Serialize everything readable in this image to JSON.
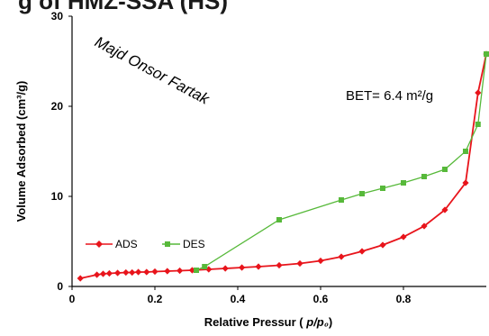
{
  "header_fragment": "g of HMZ-SSA (HS)",
  "chart_data": {
    "type": "line",
    "xlabel": "Relative Pressur (p/p₀)",
    "ylabel": "Volume Adsorbed (cm³/g)",
    "xlim": [
      0,
      1.0
    ],
    "ylim": [
      0,
      30
    ],
    "xticks": [
      "0",
      "0.2",
      "0.4",
      "0.6",
      "0.8"
    ],
    "xtick_values": [
      0,
      0.2,
      0.4,
      0.6,
      0.8
    ],
    "yticks": [
      "0",
      "10",
      "20",
      "30"
    ],
    "ytick_values": [
      0,
      10,
      20,
      30
    ],
    "grid": false,
    "legend": "bottom-left",
    "annotations": {
      "watermark": "Majd Onsor Fartak",
      "bet": "BET= 6.4 m²/g"
    },
    "series": [
      {
        "name": "ADS",
        "color": "#e8141b",
        "marker": "diamond",
        "x": [
          0.02,
          0.06,
          0.075,
          0.09,
          0.11,
          0.13,
          0.145,
          0.16,
          0.18,
          0.2,
          0.23,
          0.26,
          0.29,
          0.33,
          0.37,
          0.41,
          0.45,
          0.5,
          0.55,
          0.6,
          0.65,
          0.7,
          0.75,
          0.8,
          0.85,
          0.9,
          0.95,
          0.98,
          1.0
        ],
        "y": [
          0.9,
          1.3,
          1.4,
          1.45,
          1.5,
          1.55,
          1.55,
          1.6,
          1.6,
          1.65,
          1.7,
          1.75,
          1.8,
          1.9,
          2.0,
          2.1,
          2.2,
          2.35,
          2.55,
          2.85,
          3.3,
          3.9,
          4.6,
          5.5,
          6.7,
          8.5,
          11.5,
          21.5,
          25.8
        ]
      },
      {
        "name": "DES",
        "color": "#57b93a",
        "marker": "square",
        "x": [
          0.3,
          0.32,
          0.5,
          0.65,
          0.7,
          0.75,
          0.8,
          0.85,
          0.9,
          0.95,
          0.98,
          1.0
        ],
        "y": [
          1.8,
          2.2,
          7.4,
          9.6,
          10.3,
          10.9,
          11.5,
          12.2,
          13.0,
          15.0,
          18.0,
          25.8
        ]
      }
    ]
  }
}
